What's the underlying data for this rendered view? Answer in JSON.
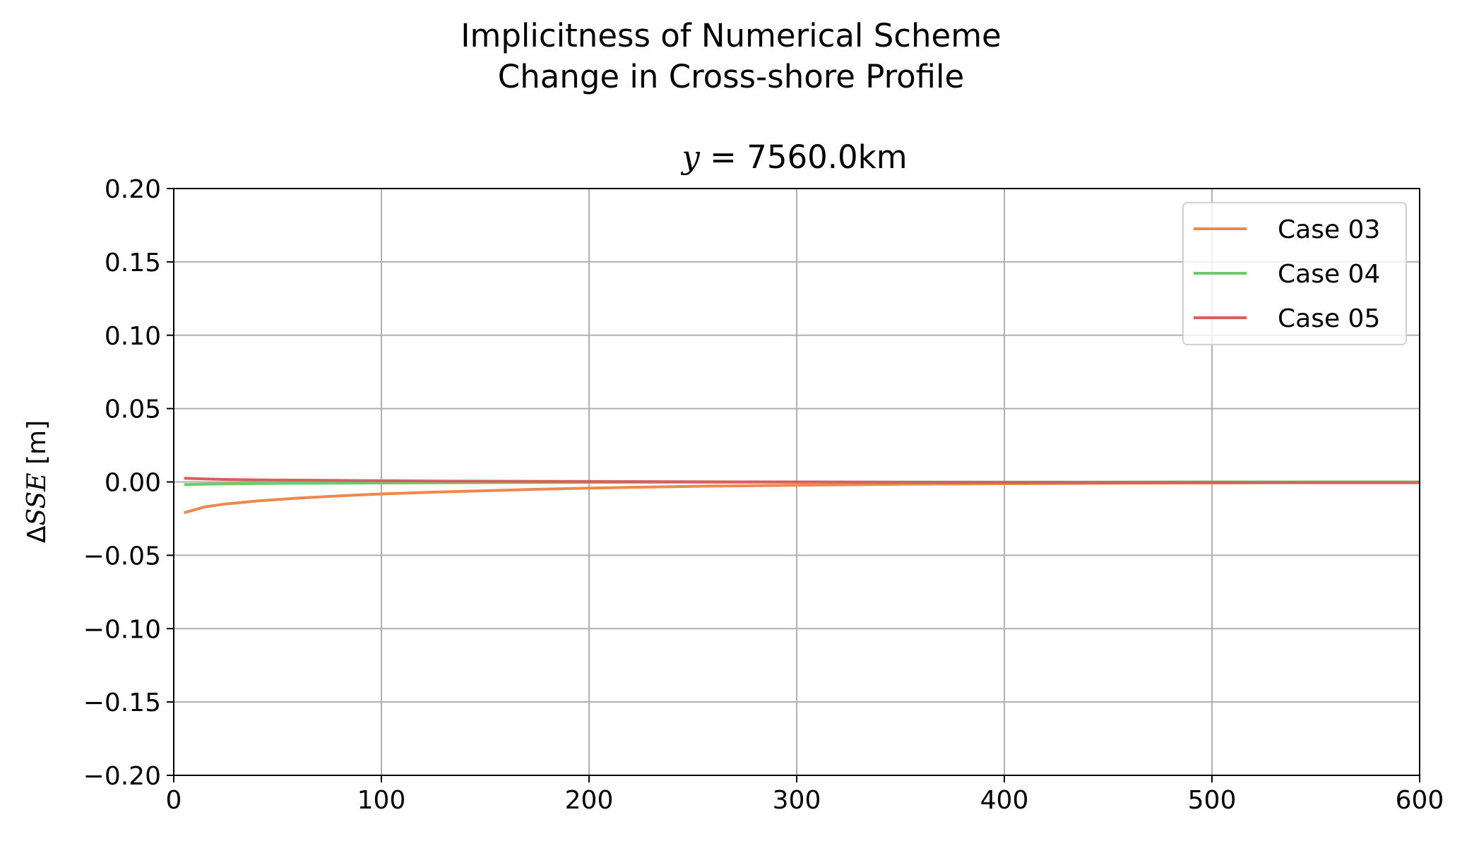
{
  "figure": {
    "suptitle_line1": "Implicitness of Numerical Scheme",
    "suptitle_line2": "Change in Cross-shore Profile"
  },
  "axes": {
    "title_var": "y",
    "title_eq": " = 7560.0km",
    "ylabel_prefix": "Δ",
    "ylabel_var": "SSE",
    "ylabel_unit": " [m]"
  },
  "chart_data": {
    "type": "line",
    "title": "y = 7560.0km",
    "xlabel": "",
    "ylabel": "ΔSSE [m]",
    "xlim": [
      0,
      600
    ],
    "ylim": [
      -0.2,
      0.2
    ],
    "xticks": [
      0,
      100,
      200,
      300,
      400,
      500,
      600
    ],
    "xtick_labels": [
      "0",
      "100",
      "200",
      "300",
      "400",
      "500",
      "600"
    ],
    "yticks": [
      0.2,
      0.15,
      0.1,
      0.05,
      0.0,
      -0.05,
      -0.1,
      -0.15,
      -0.2
    ],
    "ytick_labels": [
      "0.20",
      "0.15",
      "0.10",
      "0.05",
      "0.00",
      "−0.05",
      "−0.10",
      "−0.15",
      "−0.20"
    ],
    "grid": true,
    "legend_position": "top-right",
    "x": [
      5,
      15,
      25,
      40,
      60,
      80,
      100,
      125,
      150,
      175,
      200,
      250,
      300,
      350,
      400,
      450,
      500,
      550,
      600
    ],
    "series": [
      {
        "name": "Case 03",
        "color": "#f0874b",
        "values": [
          -0.021,
          -0.017,
          -0.015,
          -0.013,
          -0.011,
          -0.0095,
          -0.0082,
          -0.007,
          -0.006,
          -0.005,
          -0.0042,
          -0.003,
          -0.0022,
          -0.0016,
          -0.0012,
          -0.0009,
          -0.0007,
          -0.0005,
          -0.0004
        ]
      },
      {
        "name": "Case 04",
        "color": "#6ccc6c",
        "values": [
          -0.0018,
          -0.0015,
          -0.0013,
          -0.0011,
          -0.0009,
          -0.0008,
          -0.0007,
          -0.0006,
          -0.0005,
          -0.0004,
          -0.0003,
          -0.0002,
          -0.0002,
          -0.0001,
          -0.0001,
          -0.0001,
          0.0,
          0.0,
          0.0
        ]
      },
      {
        "name": "Case 05",
        "color": "#d65f5f",
        "values": [
          0.0025,
          0.002,
          0.0017,
          0.0014,
          0.0012,
          0.001,
          0.0008,
          0.0006,
          0.0005,
          0.0004,
          0.0003,
          0.0001,
          0.0,
          -0.0002,
          -0.0003,
          -0.0004,
          -0.0004,
          -0.0005,
          -0.0005
        ]
      }
    ]
  }
}
